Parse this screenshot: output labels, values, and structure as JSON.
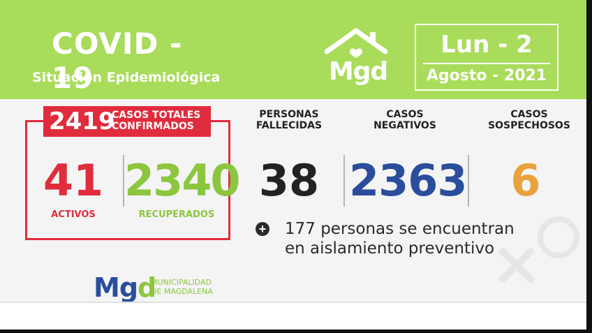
{
  "header": {
    "title": "COVID - 19",
    "subtitle": "Situación Epidemiológica",
    "logo_text": "Mgd",
    "date_day": "Lun - 2",
    "date_month": "Agosto - 2021"
  },
  "confirmed": {
    "total": "2419",
    "total_label_line1": "CASOS TOTALES",
    "total_label_line2": "CONFIRMADOS",
    "active": "41",
    "active_label": "ACTIVOS",
    "recovered": "2340",
    "recovered_label": "RECUPERADOS"
  },
  "deaths": {
    "label_line1": "PERSONAS",
    "label_line2": "FALLECIDAS",
    "value": "38"
  },
  "negative": {
    "label_line1": "CASOS",
    "label_line2": "NEGATIVOS",
    "value": "2363"
  },
  "suspected": {
    "label_line1": "CASOS",
    "label_line2": "SOSPECHOSOS",
    "value": "6"
  },
  "note": {
    "icon": "plus-circle-icon",
    "line1": "177 personas se encuentran",
    "line2": "en aislamiento preventivo"
  },
  "footer": {
    "logo_m": "Mg",
    "logo_d": "d",
    "muni_line1": "MUNICIPALIDAD",
    "muni_line2": "DE MAGDALENA"
  },
  "colors": {
    "header_green": "#a9dc5a",
    "red": "#e02c3c",
    "recovered_green": "#8cc63f",
    "negative_blue": "#2a4d9c",
    "suspected_orange": "#e9a23b",
    "dark": "#222222"
  }
}
